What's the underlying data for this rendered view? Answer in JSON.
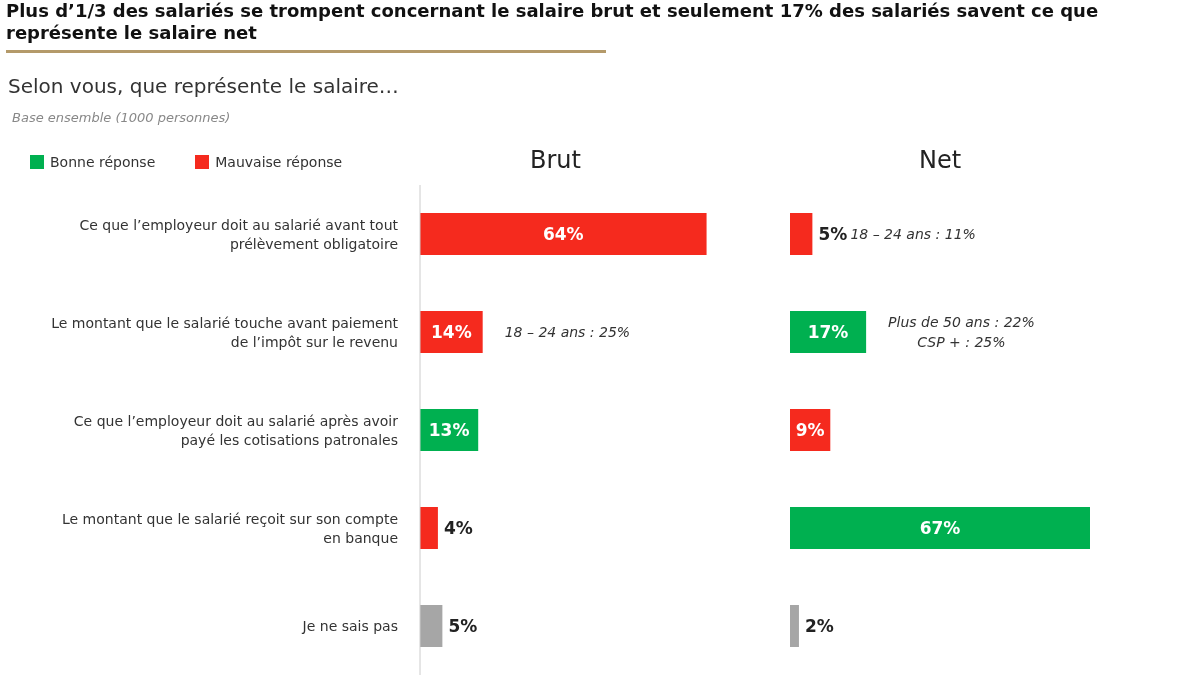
{
  "chart_data": [
    {
      "type": "bar",
      "title": "Plus d’1/3 des salariés se trompent concernant le salaire brut et seulement 17% des salariés savent ce que représente le salaire net",
      "subtitle": "Selon vous, que représente le salaire…",
      "xlabel": "Brut",
      "orientation": "horizontal",
      "stacked": true,
      "legend": "top left",
      "categories": [
        "Ce que l’employeur doit au salarié avant tout prélèvement obligatoire",
        "Le montant que le salarié touche avant paiement de l’impôt sur le revenu",
        "Ce que l’employeur doit au salarié après avoir payé les cotisations patronales",
        "Le montant que le salarié reçoit sur son compte en banque",
        "Je ne sais pas"
      ],
      "series": [
        {
          "name": "Bonne réponse",
          "color": "#00b050",
          "values": [
            null,
            null,
            13,
            null,
            null
          ],
          "value_labels": [
            null,
            null,
            "13%",
            null,
            null
          ]
        },
        {
          "name": "Mauvaise réponse",
          "color": "#f52a1e",
          "values": [
            64,
            14,
            null,
            4,
            null
          ],
          "value_labels": [
            "64%",
            "14%",
            null,
            "4%",
            null
          ]
        },
        {
          "color": "#a6a6a6",
          "values": [
            null,
            null,
            null,
            null,
            5
          ],
          "value_labels": [
            null,
            null,
            null,
            null,
            "5%"
          ]
        }
      ],
      "annotations": [
        "Base ensemble (1000 personnes)",
        {
          "text": "18 – 24 ans : 25%",
          "x": 14,
          "y": "Le montant que le salarié touche avant paiement de l’impôt sur le revenu"
        }
      ]
    },
    {
      "type": "bar",
      "xlabel": "Net",
      "orientation": "horizontal",
      "stacked": true,
      "tick_labels": false,
      "categories": [
        "Ce que l’employeur doit au salarié avant tout prélèvement obligatoire",
        "Le montant que le salarié touche avant paiement de l’impôt sur le revenu",
        "Ce que l’employeur doit au salarié après avoir payé les cotisations patronales",
        "Le montant que le salarié reçoit sur son compte en banque",
        "Je ne sais pas"
      ],
      "series": [
        {
          "color": "#00b050",
          "values": [
            null,
            17,
            null,
            67,
            null
          ],
          "value_labels": [
            null,
            "17%",
            null,
            "67%",
            null
          ]
        },
        {
          "color": "#f52a1e",
          "values": [
            5,
            null,
            9,
            null,
            null
          ],
          "value_labels": [
            "5%",
            null,
            "9%",
            null,
            null
          ]
        },
        {
          "color": "#a6a6a6",
          "values": [
            null,
            null,
            null,
            null,
            2
          ],
          "value_labels": [
            null,
            null,
            null,
            null,
            "2%"
          ]
        }
      ],
      "annotations": [
        {
          "text": "18 – 24 ans : 11%",
          "x": 5,
          "y": "Ce que l’employeur doit au salarié avant tout prélèvement obligatoire"
        },
        {
          "text": "Plus de 50 ans : 22%\nCSP + : 25%",
          "x": 17,
          "y": "Le montant que le salarié touche avant paiement de l’impôt sur le revenu"
        }
      ]
    }
  ]
}
